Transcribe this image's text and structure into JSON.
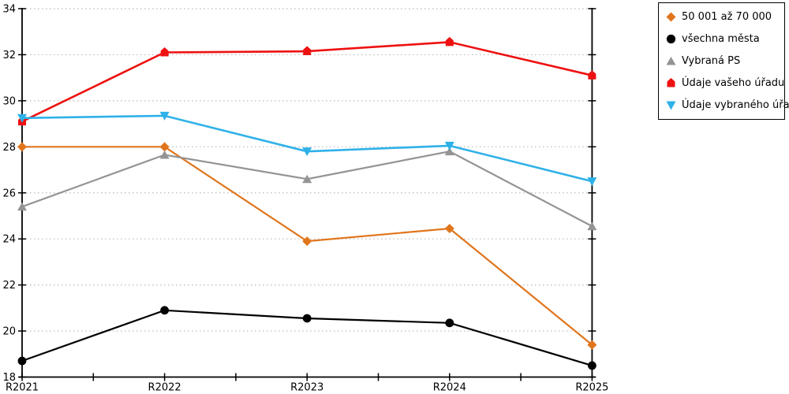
{
  "chart_data": {
    "type": "line",
    "categories": [
      "R2021",
      "R2022",
      "R2023",
      "R2024",
      "R2025"
    ],
    "series": [
      {
        "name": "50 001 až 70 000",
        "color": "#E0751C",
        "marker": "diamond",
        "values": [
          28.0,
          28.0,
          23.9,
          24.45,
          19.4
        ]
      },
      {
        "name": "všechna města",
        "color": "#000000",
        "marker": "circle",
        "values": [
          18.7,
          20.9,
          20.55,
          20.35,
          18.5
        ]
      },
      {
        "name": "Vybraná PS",
        "color": "#949494",
        "marker": "triangle-up",
        "values": [
          25.4,
          27.65,
          26.6,
          27.8,
          24.55
        ]
      },
      {
        "name": "Údaje vašeho úřadu",
        "color": "#EE1111",
        "marker": "house",
        "values": [
          29.1,
          32.1,
          32.15,
          32.55,
          31.1
        ]
      },
      {
        "name": "Údaje vybraného úřadu",
        "color": "#2EB1E8",
        "marker": "triangle-down",
        "values": [
          29.25,
          29.35,
          27.8,
          28.05,
          26.5
        ]
      }
    ],
    "ylim": [
      18,
      34
    ],
    "ytick_step": 2,
    "ytick_labels": [
      "18",
      "20",
      "22",
      "24",
      "26",
      "28",
      "30",
      "32",
      "34"
    ],
    "grid": "horizontal-dotted",
    "legend_position": "right",
    "colors": {
      "axis": "#000000",
      "gridline": "#BDBDBD",
      "background": "#FFFFFF"
    }
  }
}
